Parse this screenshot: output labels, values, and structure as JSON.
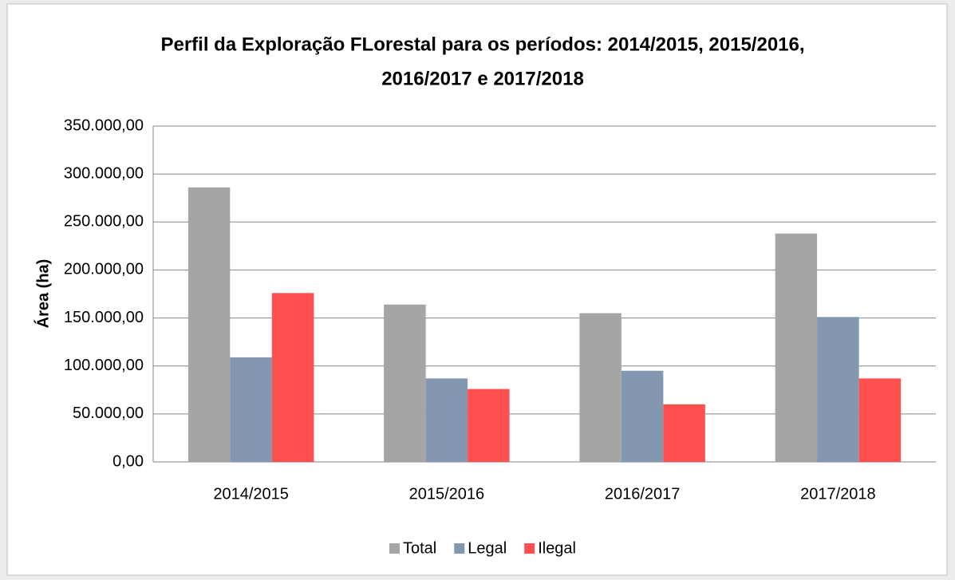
{
  "chart_data": {
    "type": "bar",
    "title": [
      "Perfil da Exploração  FLorestal para os períodos:  2014/2015, 2015/2016,",
      "2016/2017 e 2017/2018"
    ],
    "ylabel": "Área (ha)",
    "categories": [
      "2014/2015",
      "2015/2016",
      "2016/2017",
      "2017/2018"
    ],
    "series": [
      {
        "name": "Total",
        "color": "#a5a5a5",
        "values": [
          286000,
          164000,
          155000,
          238000
        ]
      },
      {
        "name": "Legal",
        "color": "#8497b0",
        "values": [
          109000,
          87000,
          95000,
          151000
        ]
      },
      {
        "name": "Ilegal",
        "color": "#ff5050",
        "values": [
          176000,
          76000,
          60000,
          87000
        ]
      }
    ],
    "ylim": [
      0,
      350000
    ],
    "yticks": [
      {
        "value": 0,
        "label": "0,00"
      },
      {
        "value": 50000,
        "label": "50.000,00"
      },
      {
        "value": 100000,
        "label": "100.000,00"
      },
      {
        "value": 150000,
        "label": "150.000,00"
      },
      {
        "value": 200000,
        "label": "200.000,00"
      },
      {
        "value": 250000,
        "label": "250.000,00"
      },
      {
        "value": 300000,
        "label": "300.000,00"
      },
      {
        "value": 350000,
        "label": "350.000,00"
      }
    ],
    "grid": true,
    "legend": "bottom"
  }
}
